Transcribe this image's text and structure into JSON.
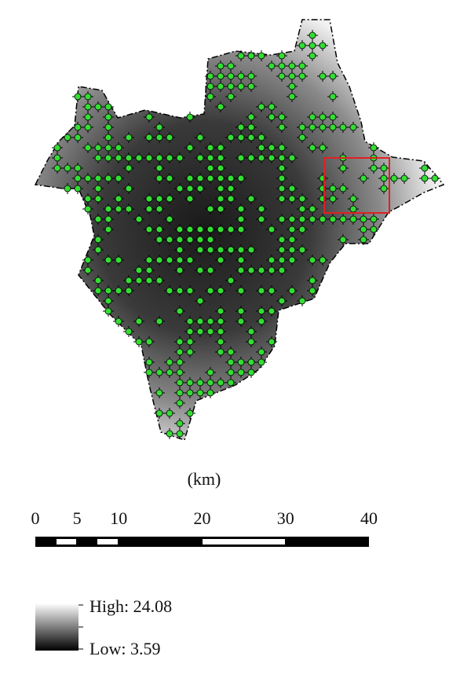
{
  "scale_bar": {
    "unit": "(km)",
    "ticks": [
      0,
      5,
      10,
      20,
      30,
      40
    ]
  },
  "legend": {
    "high": "High: 24.08",
    "low": "Low: 3.59"
  }
}
